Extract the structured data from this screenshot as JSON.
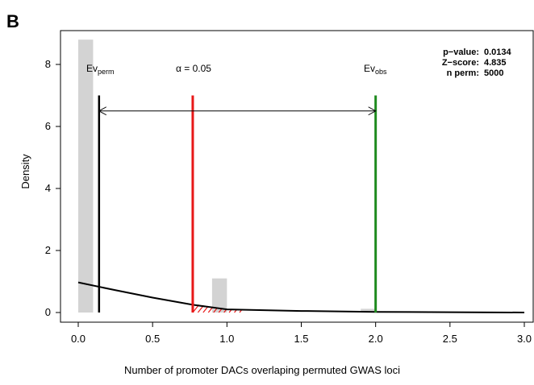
{
  "panel_label": "B",
  "chart_data": {
    "type": "bar",
    "xlabel": "Number of promoter DACs overlaping permuted GWAS loci",
    "ylabel": "Density",
    "xlim": [
      0,
      3.0
    ],
    "ylim": [
      0,
      9.2
    ],
    "xticks": [
      "0.0",
      "0.5",
      "1.0",
      "1.5",
      "2.0",
      "2.5",
      "3.0"
    ],
    "yticks": [
      "0",
      "2",
      "4",
      "6",
      "8"
    ],
    "grid": false,
    "histogram_bars": [
      {
        "x0": 0.0,
        "x1": 0.1,
        "density": 8.8
      },
      {
        "x0": 0.9,
        "x1": 1.0,
        "density": 1.1
      },
      {
        "x0": 1.9,
        "x1": 2.0,
        "density": 0.12
      }
    ],
    "density_curve": {
      "x": [
        0.0,
        0.25,
        0.5,
        0.77,
        1.0,
        1.5,
        2.0,
        2.5,
        3.0
      ],
      "y": [
        0.97,
        0.72,
        0.48,
        0.25,
        0.1,
        0.05,
        0.02,
        0.01,
        0.0
      ]
    },
    "ev_perm": {
      "label": "Ev",
      "subscript": "perm",
      "x": 0.14,
      "y_top": 7.0,
      "color": "#000000"
    },
    "alpha": {
      "label": "α = 0.05",
      "x": 0.77,
      "y_top": 7.0,
      "color": "#e81818"
    },
    "ev_obs": {
      "label": "Ev",
      "subscript": "obs",
      "x": 2.0,
      "y_top": 7.0,
      "color": "#1e8a1e"
    },
    "arrow": {
      "x_from": 0.14,
      "x_to": 2.0,
      "y": 6.5
    },
    "hatch_region": {
      "x0": 0.77,
      "x1": 1.1,
      "color": "#e81818"
    },
    "stats": [
      {
        "label": "p−value:",
        "value": "0.0134"
      },
      {
        "label": "Z−score:",
        "value": "4.835"
      },
      {
        "label": "n perm:",
        "value": "5000"
      }
    ],
    "colors": {
      "bars": "#d3d3d3",
      "curve": "#000000",
      "axis": "#000000"
    }
  }
}
